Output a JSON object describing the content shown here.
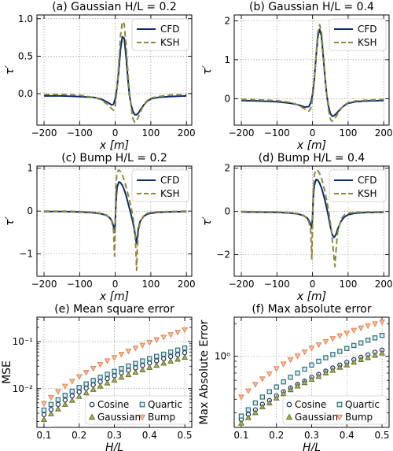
{
  "chart_data": [
    {
      "type": "line",
      "title": "(a) Gaussian H/L = 0.2",
      "xlabel": "x [m]",
      "ylabel": "τ′",
      "xlim": [
        -220,
        215
      ],
      "ylim": [
        -0.42,
        1.05
      ],
      "xticks": [
        -200,
        -100,
        0,
        100,
        200
      ],
      "xtick_labels": [
        "−200",
        "−100",
        "0",
        "100",
        "200"
      ],
      "yticks": [
        0,
        0.5,
        1
      ],
      "ytick_labels": [
        "0.0",
        "0.5",
        "1.0"
      ],
      "grid": true,
      "legend": "top-right",
      "series": [
        {
          "name": "CFD",
          "color": "#0f2a6b",
          "style": "solid",
          "x": [
            -200,
            -150,
            -100,
            -60,
            -40,
            -20,
            -10,
            -5,
            0,
            5,
            10,
            15,
            20,
            25,
            30,
            35,
            40,
            45,
            50,
            55,
            60,
            65,
            70,
            80,
            90,
            100,
            120,
            150,
            200
          ],
          "y": [
            -0.03,
            -0.03,
            -0.04,
            -0.05,
            -0.07,
            -0.12,
            -0.15,
            -0.14,
            -0.07,
            0.08,
            0.32,
            0.6,
            0.76,
            0.74,
            0.52,
            0.22,
            -0.02,
            -0.16,
            -0.24,
            -0.28,
            -0.28,
            -0.26,
            -0.22,
            -0.15,
            -0.1,
            -0.07,
            -0.05,
            -0.04,
            -0.03
          ]
        },
        {
          "name": "KSH",
          "color": "#8a8a3a",
          "style": "dashed",
          "x": [
            -200,
            -150,
            -100,
            -60,
            -40,
            -20,
            -10,
            -5,
            0,
            5,
            10,
            15,
            20,
            25,
            30,
            35,
            40,
            45,
            50,
            55,
            60,
            65,
            70,
            80,
            90,
            100,
            120,
            150,
            200
          ],
          "y": [
            -0.01,
            -0.01,
            -0.02,
            -0.05,
            -0.08,
            -0.15,
            -0.2,
            -0.22,
            -0.16,
            0.05,
            0.42,
            0.78,
            0.96,
            0.93,
            0.68,
            0.32,
            0.02,
            -0.2,
            -0.34,
            -0.38,
            -0.36,
            -0.31,
            -0.25,
            -0.15,
            -0.09,
            -0.06,
            -0.04,
            -0.02,
            -0.01
          ]
        }
      ]
    },
    {
      "type": "line",
      "title": "(b) Gaussian H/L = 0.4",
      "xlabel": "x [m]",
      "ylabel": "τ′",
      "xlim": [
        -220,
        215
      ],
      "ylim": [
        -0.68,
        2.15
      ],
      "xticks": [
        -200,
        -100,
        0,
        100,
        200
      ],
      "xtick_labels": [
        "−200",
        "−100",
        "0",
        "100",
        "200"
      ],
      "yticks": [
        0,
        1,
        2
      ],
      "ytick_labels": [
        "0",
        "1",
        "2"
      ],
      "grid": true,
      "legend": "top-right",
      "series": [
        {
          "name": "CFD",
          "color": "#0f2a6b",
          "style": "solid",
          "x": [
            -200,
            -150,
            -100,
            -60,
            -40,
            -20,
            -10,
            -5,
            0,
            5,
            10,
            15,
            20,
            25,
            30,
            35,
            40,
            45,
            50,
            55,
            60,
            65,
            70,
            80,
            90,
            100,
            120,
            150,
            200
          ],
          "y": [
            -0.05,
            -0.06,
            -0.08,
            -0.12,
            -0.16,
            -0.22,
            -0.2,
            -0.1,
            0.1,
            0.5,
            1.1,
            1.6,
            1.78,
            1.6,
            1.1,
            0.55,
            0.1,
            -0.2,
            -0.38,
            -0.45,
            -0.44,
            -0.4,
            -0.35,
            -0.25,
            -0.17,
            -0.12,
            -0.08,
            -0.06,
            -0.05
          ]
        },
        {
          "name": "KSH",
          "color": "#8a8a3a",
          "style": "dashed",
          "x": [
            -200,
            -150,
            -100,
            -60,
            -40,
            -20,
            -10,
            -5,
            0,
            5,
            10,
            15,
            20,
            25,
            30,
            35,
            40,
            45,
            50,
            55,
            60,
            65,
            70,
            80,
            90,
            100,
            120,
            150,
            200
          ],
          "y": [
            -0.02,
            -0.03,
            -0.05,
            -0.1,
            -0.16,
            -0.28,
            -0.32,
            -0.25,
            0.0,
            0.45,
            1.15,
            1.7,
            1.9,
            1.72,
            1.2,
            0.6,
            0.1,
            -0.3,
            -0.52,
            -0.58,
            -0.55,
            -0.48,
            -0.4,
            -0.26,
            -0.16,
            -0.1,
            -0.06,
            -0.04,
            -0.02
          ]
        }
      ]
    },
    {
      "type": "line",
      "title": "(c) Bump H/L = 0.2",
      "xlabel": "x [m]",
      "ylabel": "τ′",
      "xlim": [
        -220,
        215
      ],
      "ylim": [
        -1.52,
        1.05
      ],
      "xticks": [
        -200,
        -100,
        0,
        100,
        200
      ],
      "xtick_labels": [
        "−200",
        "−100",
        "0",
        "100",
        "200"
      ],
      "yticks": [
        -1,
        0,
        1
      ],
      "ytick_labels": [
        "−1",
        "0",
        "1"
      ],
      "grid": true,
      "legend": "top-right",
      "series": [
        {
          "name": "CFD",
          "color": "#0f2a6b",
          "style": "solid",
          "x": [
            -200,
            -150,
            -100,
            -60,
            -40,
            -25,
            -15,
            -10,
            -5,
            -2,
            0,
            2,
            5,
            10,
            15,
            20,
            25,
            30,
            35,
            40,
            45,
            50,
            55,
            58,
            60,
            62,
            65,
            70,
            80,
            90,
            100,
            120,
            150,
            200
          ],
          "y": [
            -0.01,
            -0.01,
            -0.02,
            -0.04,
            -0.06,
            -0.1,
            -0.16,
            -0.22,
            -0.35,
            -0.5,
            -0.3,
            0.2,
            0.55,
            0.68,
            0.66,
            0.6,
            0.5,
            0.38,
            0.22,
            0.06,
            -0.1,
            -0.28,
            -0.5,
            -0.68,
            -0.75,
            -0.6,
            -0.4,
            -0.24,
            -0.12,
            -0.07,
            -0.05,
            -0.03,
            -0.02,
            -0.01
          ]
        },
        {
          "name": "KSH",
          "color": "#8a8a3a",
          "style": "dashed",
          "x": [
            -200,
            -150,
            -100,
            -60,
            -40,
            -25,
            -15,
            -10,
            -5,
            -2,
            0,
            2,
            5,
            10,
            15,
            20,
            25,
            30,
            35,
            40,
            45,
            50,
            55,
            58,
            60,
            62,
            65,
            70,
            80,
            90,
            100,
            120,
            150,
            200
          ],
          "y": [
            0,
            0,
            -0.01,
            -0.03,
            -0.05,
            -0.09,
            -0.16,
            -0.24,
            -0.45,
            -1.05,
            -0.4,
            0.6,
            0.9,
            0.96,
            0.92,
            0.84,
            0.72,
            0.58,
            0.42,
            0.26,
            0.08,
            -0.15,
            -0.45,
            -0.9,
            -1.38,
            -0.9,
            -0.5,
            -0.25,
            -0.1,
            -0.05,
            -0.03,
            -0.02,
            -0.01,
            0
          ]
        }
      ]
    },
    {
      "type": "line",
      "title": "(d) Bump H/L = 0.4",
      "xlabel": "x [m]",
      "ylabel": "τ′",
      "xlim": [
        -220,
        215
      ],
      "ylim": [
        -3.0,
        2.1
      ],
      "xticks": [
        -200,
        -100,
        0,
        100,
        200
      ],
      "xtick_labels": [
        "−200",
        "−100",
        "0",
        "100",
        "200"
      ],
      "yticks": [
        -2,
        0,
        2
      ],
      "ytick_labels": [
        "−2",
        "0",
        "2"
      ],
      "grid": true,
      "legend": "top-right",
      "series": [
        {
          "name": "CFD",
          "color": "#0f2a6b",
          "style": "solid",
          "x": [
            -200,
            -150,
            -100,
            -60,
            -40,
            -25,
            -15,
            -10,
            -5,
            -2,
            0,
            2,
            5,
            10,
            15,
            20,
            25,
            30,
            35,
            40,
            45,
            50,
            55,
            60,
            65,
            70,
            80,
            90,
            100,
            120,
            150,
            200
          ],
          "y": [
            -0.02,
            -0.03,
            -0.04,
            -0.08,
            -0.12,
            -0.2,
            -0.3,
            -0.42,
            -0.6,
            -0.78,
            -0.3,
            0.6,
            1.2,
            1.48,
            1.45,
            1.3,
            1.1,
            0.82,
            0.5,
            0.15,
            -0.25,
            -0.7,
            -1.05,
            -1.2,
            -1.1,
            -0.85,
            -0.45,
            -0.25,
            -0.15,
            -0.08,
            -0.05,
            -0.03
          ]
        },
        {
          "name": "KSH",
          "color": "#8a8a3a",
          "style": "dashed",
          "x": [
            -200,
            -150,
            -100,
            -60,
            -40,
            -25,
            -15,
            -10,
            -5,
            -2,
            0,
            2,
            5,
            10,
            15,
            20,
            25,
            30,
            35,
            40,
            45,
            50,
            55,
            60,
            63,
            65,
            70,
            80,
            90,
            100,
            120,
            150,
            200
          ],
          "y": [
            0,
            -0.01,
            -0.02,
            -0.06,
            -0.1,
            -0.18,
            -0.32,
            -0.5,
            -0.9,
            -2.2,
            -0.8,
            0.9,
            1.7,
            1.92,
            1.88,
            1.75,
            1.55,
            1.25,
            0.9,
            0.5,
            0.05,
            -0.5,
            -1.2,
            -2.1,
            -2.55,
            -2.0,
            -1.0,
            -0.35,
            -0.15,
            -0.08,
            -0.04,
            -0.02,
            -0.01
          ]
        }
      ]
    },
    {
      "type": "scatter",
      "title": "(e) Mean square error",
      "xlabel": "H/L",
      "ylabel": "MSE",
      "xlim": [
        0.08,
        0.52
      ],
      "ylim": [
        0.0015,
        0.33
      ],
      "yscale": "log",
      "xticks": [
        0.1,
        0.2,
        0.3,
        0.4,
        0.5
      ],
      "xtick_labels": [
        "0.1",
        "0.2",
        "0.3",
        "0.4",
        "0.5"
      ],
      "yticks": [
        0.01,
        0.1
      ],
      "ytick_labels": [
        "10⁻²",
        "10⁻¹"
      ],
      "grid": true,
      "legend": "lower-right",
      "x": [
        0.1,
        0.12,
        0.14,
        0.16,
        0.18,
        0.2,
        0.22,
        0.24,
        0.26,
        0.28,
        0.3,
        0.32,
        0.34,
        0.36,
        0.38,
        0.4,
        0.42,
        0.44,
        0.46,
        0.48,
        0.5
      ],
      "series": [
        {
          "name": "Cosine",
          "marker": "circle",
          "color": "#0f2a6b",
          "fill": "#ffffff",
          "values": [
            0.0028,
            0.0036,
            0.0046,
            0.0057,
            0.007,
            0.0085,
            0.0102,
            0.012,
            0.014,
            0.0163,
            0.0188,
            0.0215,
            0.0245,
            0.0277,
            0.0312,
            0.035,
            0.039,
            0.0435,
            0.048,
            0.053,
            0.058
          ]
        },
        {
          "name": "Quartic",
          "marker": "square",
          "color": "#2e6f78",
          "fill": "#d9ecee",
          "values": [
            0.0035,
            0.0046,
            0.0058,
            0.0072,
            0.0088,
            0.0106,
            0.0126,
            0.0149,
            0.0174,
            0.0202,
            0.0233,
            0.0267,
            0.0304,
            0.0344,
            0.0388,
            0.0435,
            0.0486,
            0.054,
            0.06,
            0.066,
            0.073
          ]
        },
        {
          "name": "Gaussian",
          "marker": "triangle-up",
          "color": "#6f7a2e",
          "fill": "#a9b56a",
          "values": [
            0.0022,
            0.0029,
            0.0037,
            0.0046,
            0.0056,
            0.0068,
            0.0081,
            0.0096,
            0.0113,
            0.0131,
            0.0151,
            0.0173,
            0.0197,
            0.0223,
            0.025,
            0.028,
            0.0312,
            0.0346,
            0.0382,
            0.042,
            0.046
          ]
        },
        {
          "name": "Bump",
          "marker": "triangle-down",
          "color": "#e88a5e",
          "fill": "#f7c3a4",
          "values": [
            0.0048,
            0.0065,
            0.0087,
            0.0113,
            0.0144,
            0.018,
            0.0222,
            0.0271,
            0.0327,
            0.039,
            0.046,
            0.054,
            0.063,
            0.073,
            0.084,
            0.096,
            0.11,
            0.125,
            0.141,
            0.159,
            0.178
          ]
        }
      ]
    },
    {
      "type": "scatter",
      "title": "(f) Max absolute error",
      "xlabel": "H/L",
      "ylabel": "Max Absolute Error",
      "xlim": [
        0.08,
        0.52
      ],
      "ylim": [
        0.22,
        2.3
      ],
      "yscale": "log",
      "xticks": [
        0.1,
        0.2,
        0.3,
        0.4,
        0.5
      ],
      "xtick_labels": [
        "0.1",
        "0.2",
        "0.3",
        "0.4",
        "0.5"
      ],
      "yticks": [
        1
      ],
      "ytick_labels": [
        "10⁰"
      ],
      "grid": true,
      "legend": "lower-right",
      "x": [
        0.1,
        0.12,
        0.14,
        0.16,
        0.18,
        0.2,
        0.22,
        0.24,
        0.26,
        0.28,
        0.3,
        0.32,
        0.34,
        0.36,
        0.38,
        0.4,
        0.42,
        0.44,
        0.46,
        0.48,
        0.5
      ],
      "series": [
        {
          "name": "Cosine",
          "marker": "circle",
          "color": "#0f2a6b",
          "fill": "#ffffff",
          "values": [
            0.26,
            0.29,
            0.32,
            0.36,
            0.39,
            0.43,
            0.47,
            0.51,
            0.55,
            0.59,
            0.64,
            0.68,
            0.73,
            0.78,
            0.83,
            0.88,
            0.93,
            0.98,
            1.03,
            1.09,
            1.14
          ]
        },
        {
          "name": "Quartic",
          "marker": "square",
          "color": "#2e6f78",
          "fill": "#d9ecee",
          "values": [
            0.28,
            0.32,
            0.37,
            0.42,
            0.47,
            0.52,
            0.58,
            0.64,
            0.7,
            0.76,
            0.83,
            0.9,
            0.97,
            1.04,
            1.11,
            1.18,
            1.26,
            1.33,
            1.41,
            1.48,
            1.56
          ]
        },
        {
          "name": "Gaussian",
          "marker": "triangle-up",
          "color": "#6f7a2e",
          "fill": "#a9b56a",
          "values": [
            0.24,
            0.27,
            0.3,
            0.34,
            0.37,
            0.41,
            0.45,
            0.49,
            0.53,
            0.57,
            0.61,
            0.65,
            0.7,
            0.74,
            0.79,
            0.83,
            0.88,
            0.93,
            0.97,
            1.02,
            1.07
          ]
        },
        {
          "name": "Bump",
          "marker": "triangle-down",
          "color": "#e88a5e",
          "fill": "#f7c3a4",
          "values": [
            0.42,
            0.48,
            0.55,
            0.62,
            0.69,
            0.77,
            0.85,
            0.93,
            1.01,
            1.1,
            1.19,
            1.28,
            1.37,
            1.46,
            1.55,
            1.64,
            1.74,
            1.83,
            1.92,
            2.0,
            2.08
          ]
        }
      ]
    }
  ]
}
